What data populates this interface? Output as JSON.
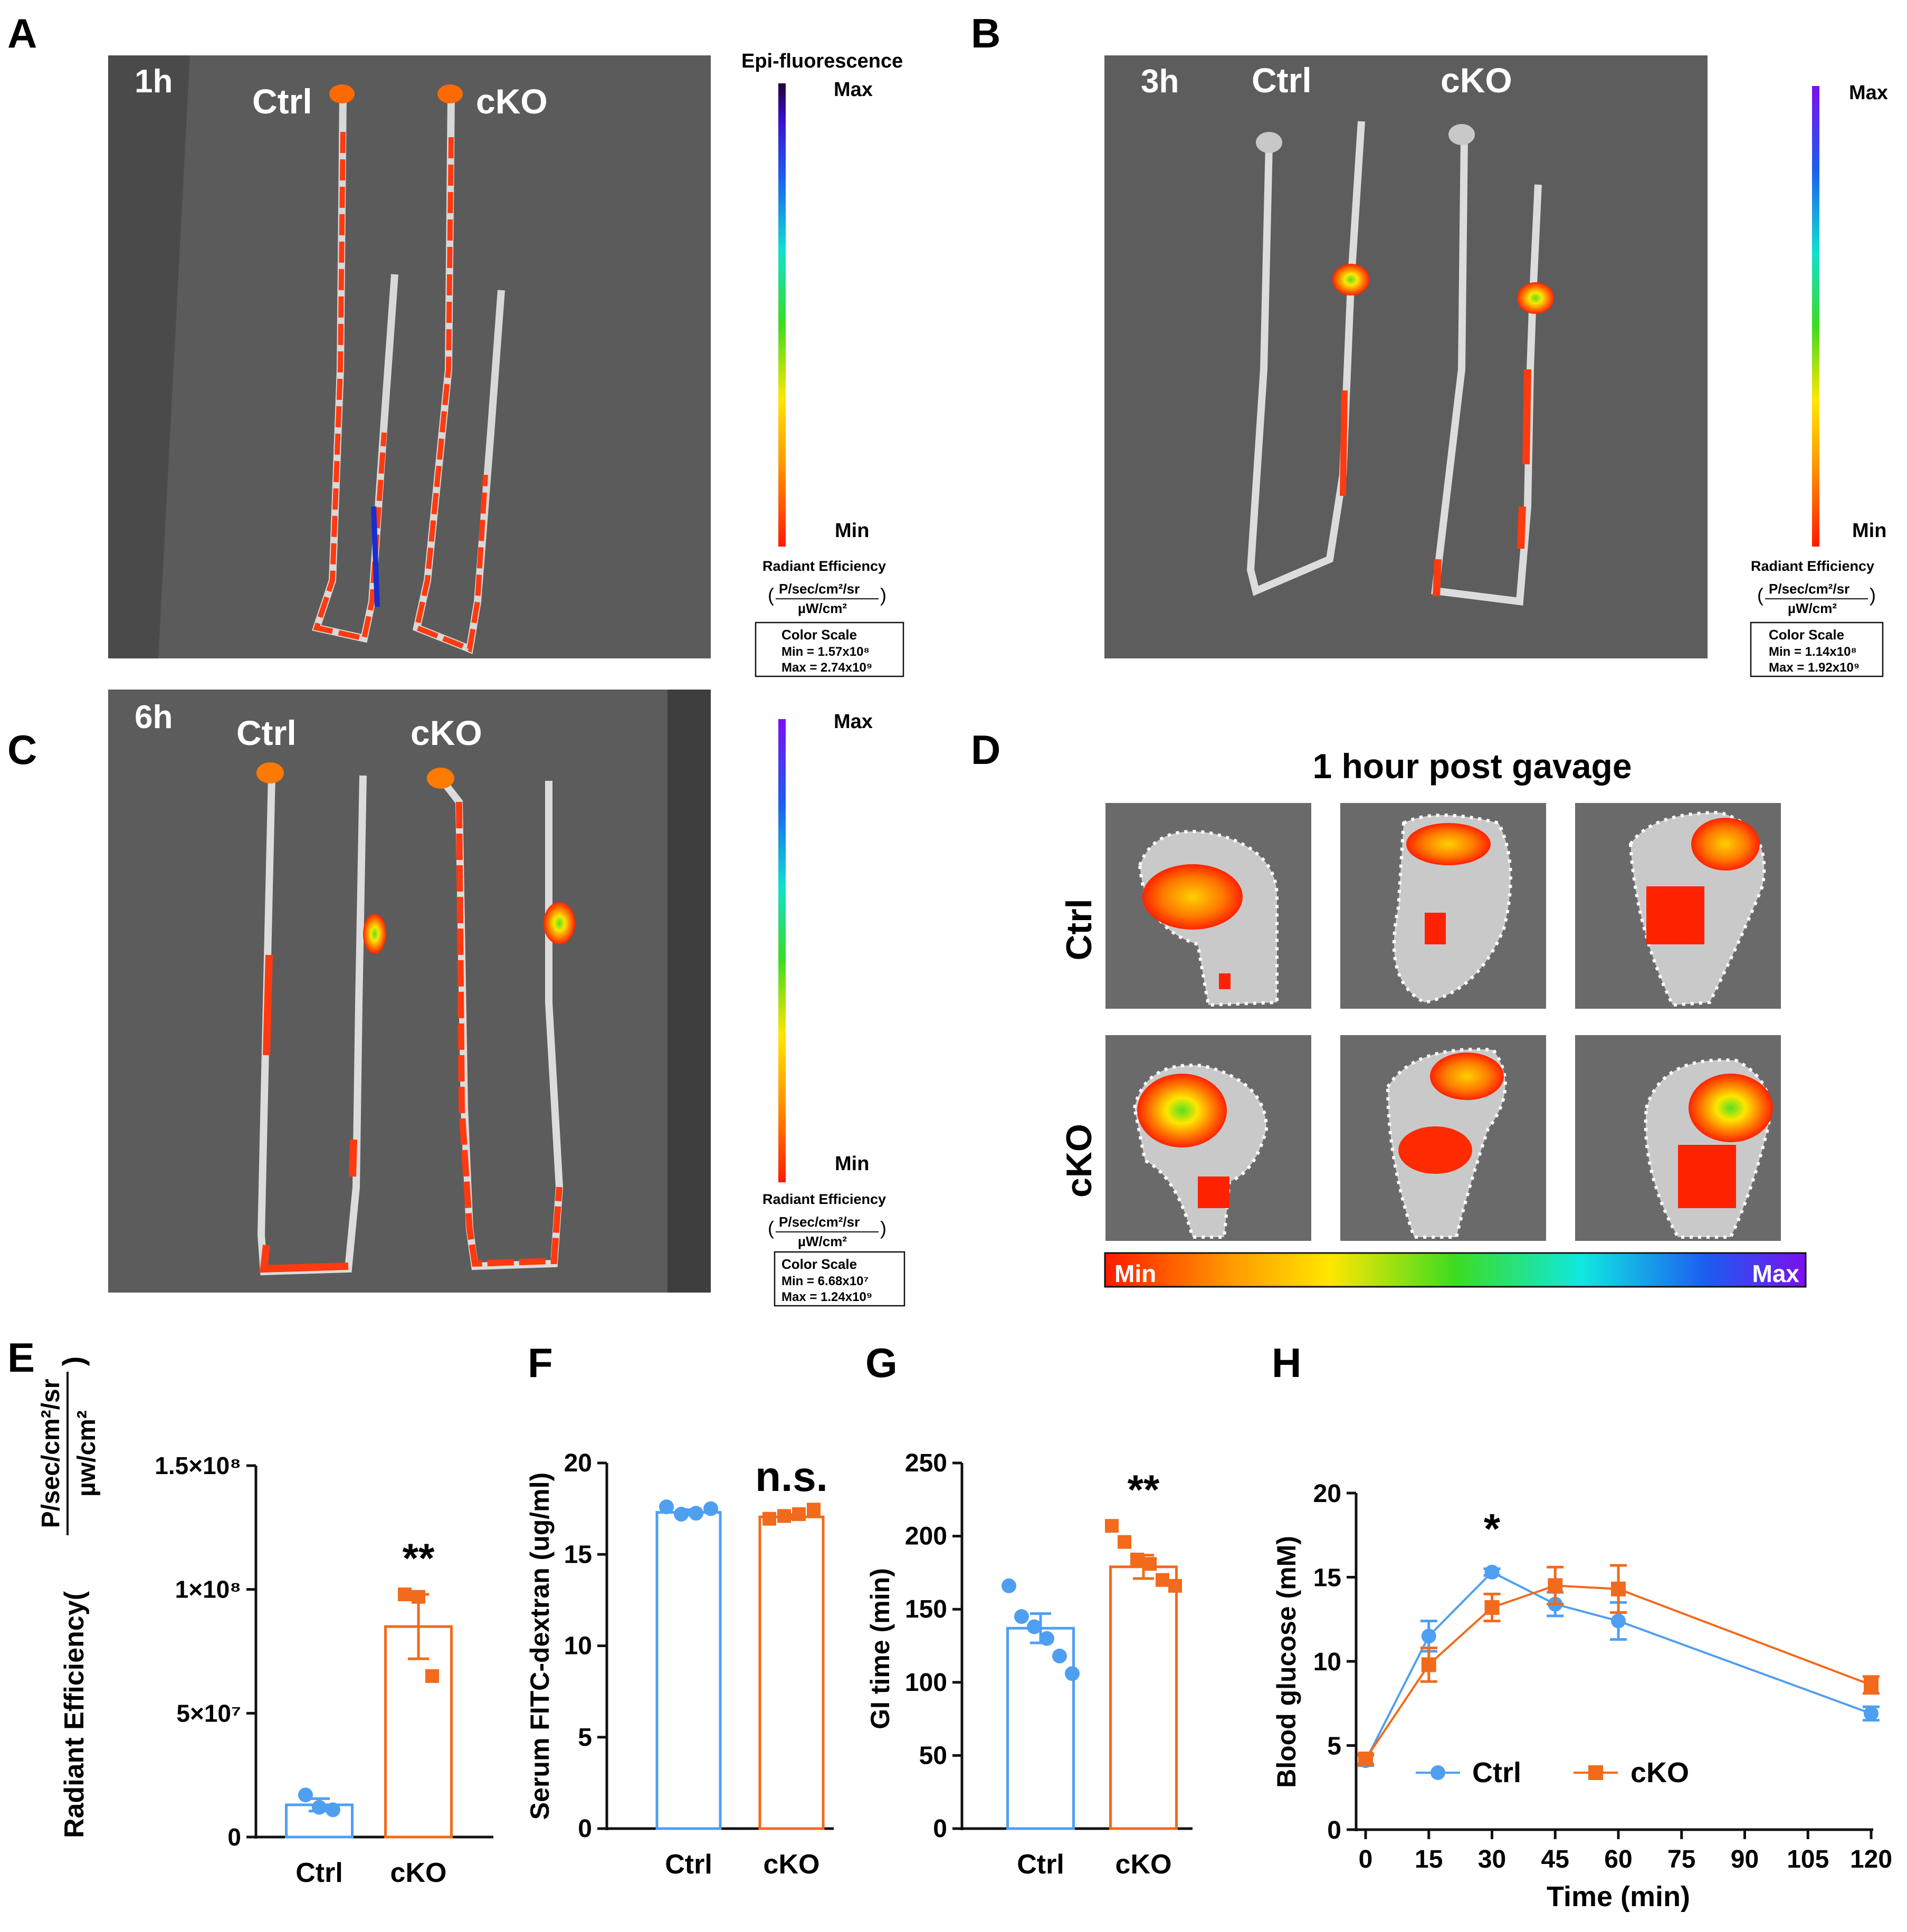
{
  "colors": {
    "ctrl": "#4f9ff0",
    "cko": "#f26a1b",
    "tissue_bg": "#5a5a5a",
    "ink": "#111111"
  },
  "panels": {
    "A": {
      "letter": "A",
      "time": "1h",
      "group1": "Ctrl",
      "group2": "cKO",
      "bar_title": "Epi-fluorescence",
      "max": "Max",
      "min": "Min",
      "units_label": "Radiant Efficiency",
      "units_num": "P/sec/cm²/sr",
      "units_den": "µW/cm²",
      "scale_title": "Color Scale",
      "scale_min": "Min = 1.57x10⁸",
      "scale_max": "Max = 2.74x10⁹"
    },
    "B": {
      "letter": "B",
      "time": "3h",
      "group1": "Ctrl",
      "group2": "cKO",
      "max": "Max",
      "min": "Min",
      "units_label": "Radiant Efficiency",
      "units_num": "P/sec/cm²/sr",
      "units_den": "µW/cm²",
      "scale_title": "Color Scale",
      "scale_min": "Min = 1.14x10⁸",
      "scale_max": "Max = 1.92x10⁹"
    },
    "C": {
      "letter": "C",
      "time": "6h",
      "group1": "Ctrl",
      "group2": "cKO",
      "max": "Max",
      "min": "Min",
      "units_label": "Radiant Efficiency",
      "units_num": "P/sec/cm²/sr",
      "units_den": "µW/cm²",
      "scale_title": "Color Scale",
      "scale_min": "Min = 6.68x10⁷",
      "scale_max": "Max = 1.24x10⁹"
    },
    "D": {
      "letter": "D",
      "title": "1 hour post gavage",
      "row1": "Ctrl",
      "row2": "cKO",
      "bar_min": "Min",
      "bar_max": "Max"
    }
  },
  "chart_data": [
    {
      "panel": "E",
      "type": "bar",
      "ylabel_main": "Radiant Efficiency(",
      "ylabel_num": "P/sec/cm²/sr",
      "ylabel_den": "µw/cm²",
      "ylim": [
        0,
        150000000
      ],
      "yticks": [
        {
          "value": 0,
          "label": "0"
        },
        {
          "value": 50000000,
          "label": "5×10⁷"
        },
        {
          "value": 100000000,
          "label": "1×10⁸"
        },
        {
          "value": 150000000,
          "label": "1.5×10⁸"
        }
      ],
      "categories": [
        "Ctrl",
        "cKO"
      ],
      "means": [
        13000000,
        85000000
      ],
      "sem": [
        2500000,
        13000000
      ],
      "points": [
        [
          17000000,
          12000000,
          11000000
        ],
        [
          98000000,
          97000000,
          65000000
        ]
      ],
      "significance": "**",
      "sig_over": 1
    },
    {
      "panel": "F",
      "type": "bar",
      "ylabel": "Serum FITC-dextran (ug/ml)",
      "ylim": [
        0,
        20
      ],
      "yticks": [
        {
          "value": 0,
          "label": "0"
        },
        {
          "value": 5,
          "label": "5"
        },
        {
          "value": 10,
          "label": "10"
        },
        {
          "value": 15,
          "label": "15"
        },
        {
          "value": 20,
          "label": "20"
        }
      ],
      "categories": [
        "Ctrl",
        "cKO"
      ],
      "means": [
        17.3,
        17.05
      ],
      "sem": [
        0.15,
        0.12
      ],
      "points": [
        [
          17.6,
          17.2,
          17.25,
          17.5
        ],
        [
          16.95,
          17.1,
          17.2,
          17.45
        ]
      ],
      "significance": "n.s.",
      "sig_over": 1
    },
    {
      "panel": "G",
      "type": "bar",
      "ylabel": "GI time (min)",
      "ylim": [
        0,
        250
      ],
      "yticks": [
        {
          "value": 0,
          "label": "0"
        },
        {
          "value": 50,
          "label": "50"
        },
        {
          "value": 100,
          "label": "100"
        },
        {
          "value": 150,
          "label": "150"
        },
        {
          "value": 200,
          "label": "200"
        },
        {
          "value": 250,
          "label": "250"
        }
      ],
      "categories": [
        "Ctrl",
        "cKO"
      ],
      "means": [
        137,
        179
      ],
      "sem": [
        10,
        8
      ],
      "points": [
        [
          166,
          145,
          138,
          130,
          118,
          106
        ],
        [
          207,
          196,
          184,
          181,
          170,
          166
        ]
      ],
      "significance": "**",
      "sig_over": 1
    },
    {
      "panel": "H",
      "type": "line",
      "xlabel": "Time (min)",
      "ylabel": "Blood glucose (mM)",
      "xlim": [
        0,
        120
      ],
      "ylim": [
        0,
        20
      ],
      "xticks": [
        0,
        15,
        30,
        45,
        60,
        75,
        90,
        105,
        120
      ],
      "yticks": [
        0,
        5,
        10,
        15,
        20
      ],
      "x": [
        0,
        15,
        30,
        45,
        60,
        120
      ],
      "series": [
        {
          "name": "Ctrl",
          "values": [
            4.1,
            11.5,
            15.3,
            13.4,
            12.4,
            6.9
          ],
          "err": [
            0.3,
            0.9,
            0.2,
            0.7,
            1.1,
            0.4
          ]
        },
        {
          "name": "cKO",
          "values": [
            4.2,
            9.8,
            13.2,
            14.5,
            14.3,
            8.6
          ],
          "err": [
            0.3,
            1.0,
            0.8,
            1.1,
            1.4,
            0.5
          ]
        }
      ],
      "significance": "*",
      "sig_at_x": 30
    }
  ]
}
